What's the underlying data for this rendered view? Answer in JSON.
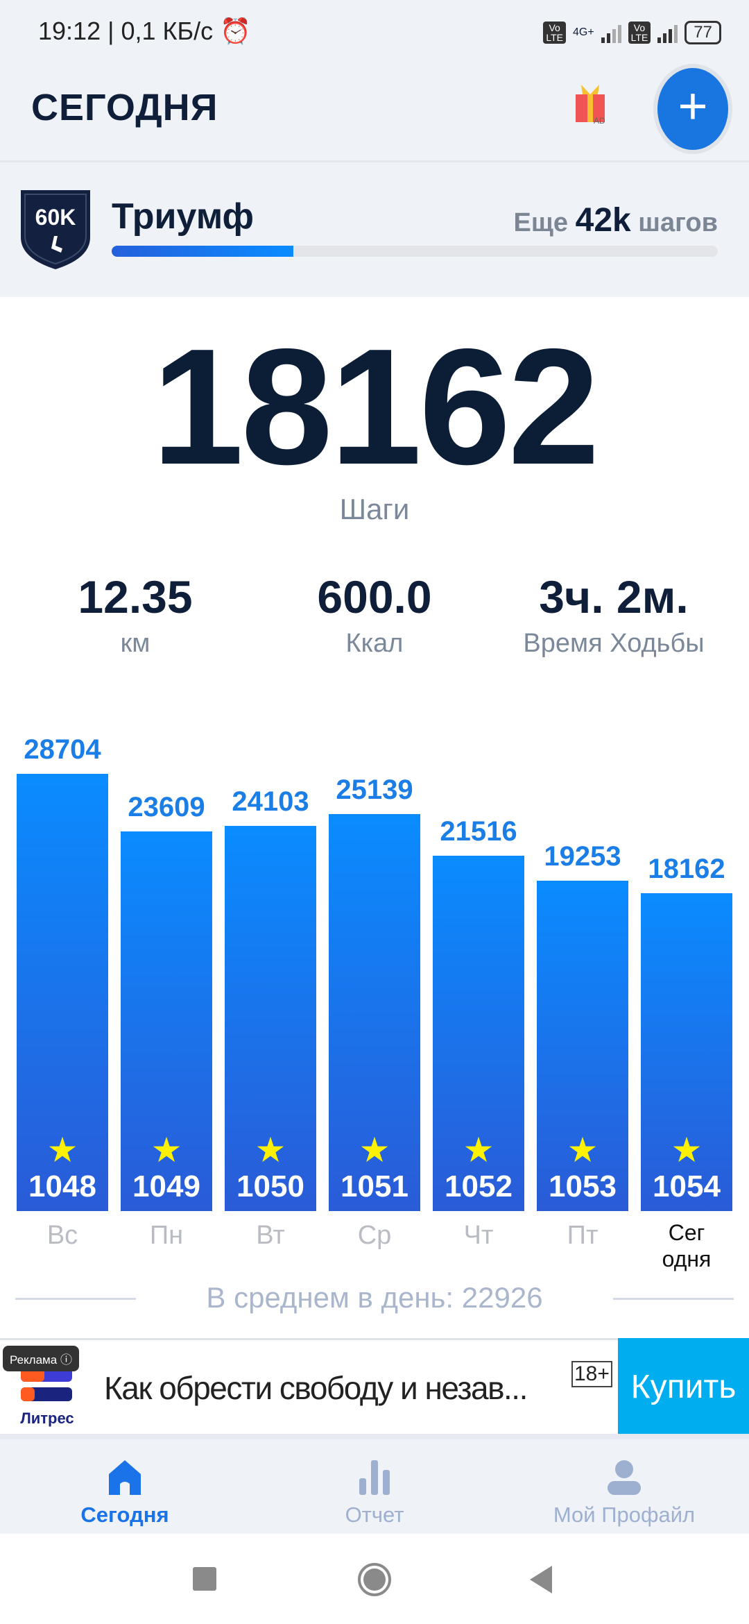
{
  "status_bar": {
    "left": "19:12 | 0,1 КБ/с",
    "network": "4G+",
    "battery": "77"
  },
  "header": {
    "title": "СЕГОДНЯ",
    "gift_badge": "AD",
    "add_icon": "plus-icon"
  },
  "achievement": {
    "badge": "60K",
    "name": "Триумф",
    "remain_prefix": "Еще",
    "remain_value": "42k",
    "remain_suffix": "шагов",
    "progress": 0.3
  },
  "today": {
    "steps": "18162",
    "steps_label": "Шаги"
  },
  "stats": [
    {
      "value": "12.35",
      "label": "км"
    },
    {
      "value": "600.0",
      "label": "Ккал"
    },
    {
      "value": "3ч. 2м.",
      "label": "Время Ходьбы"
    }
  ],
  "chart_data": {
    "type": "bar",
    "categories": [
      "Вс",
      "Пн",
      "Вт",
      "Ср",
      "Чт",
      "Пт",
      "Сегодня"
    ],
    "category_labels": [
      "Вс",
      "Пн",
      "Вт",
      "Ср",
      "Чт",
      "Пт",
      "Сег\nодня"
    ],
    "values": [
      28704,
      23609,
      24103,
      25139,
      21516,
      19253,
      18162
    ],
    "star_numbers": [
      "1048",
      "1049",
      "1050",
      "1051",
      "1052",
      "1053",
      "1054"
    ],
    "colors": {
      "bar_top": "#0a8cff",
      "bar_bottom": "#2a5bd7",
      "star": "#fff200"
    }
  },
  "average": "В среднем в день: 22926",
  "ad": {
    "tag": "Реклама",
    "brand": "Литрес",
    "text": "Как обрести свободу и незав...",
    "age": "18+",
    "button": "Купить"
  },
  "nav": [
    {
      "label": "Сегодня",
      "icon": "home-icon",
      "active": true
    },
    {
      "label": "Отчет",
      "icon": "bar-chart-icon"
    },
    {
      "label": "Мой Профайл",
      "icon": "person-icon"
    }
  ]
}
